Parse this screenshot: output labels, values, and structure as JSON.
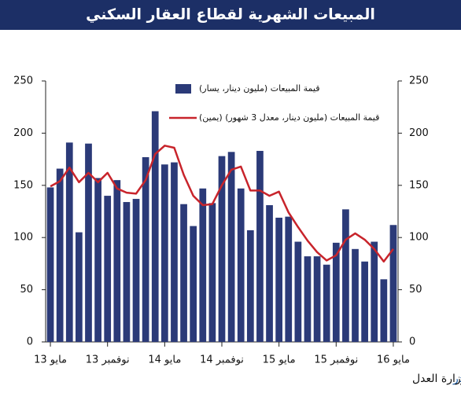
{
  "chart_data": {
    "type": "bar_line",
    "title": "المبيعات الشهرية لقطاع العقار السكني",
    "categories": [
      "مايو 13",
      null,
      null,
      null,
      null,
      null,
      "نوفمبر 13",
      null,
      null,
      null,
      null,
      null,
      "مايو 14",
      null,
      null,
      null,
      null,
      null,
      "نوفمبر 14",
      null,
      null,
      null,
      null,
      null,
      "مايو 15",
      null,
      null,
      null,
      null,
      null,
      "نوفمبر 15",
      null,
      null,
      null,
      null,
      null,
      "مايو 16"
    ],
    "series": [
      {
        "name": "قيمة المبيعات (مليون دينار، يسار)",
        "type": "bar",
        "color": "#2b3a78",
        "values": [
          148,
          166,
          191,
          105,
          190,
          157,
          140,
          155,
          134,
          137,
          177,
          221,
          170,
          172,
          132,
          111,
          147,
          133,
          178,
          182,
          147,
          107,
          183,
          131,
          119,
          120,
          96,
          82,
          82,
          74,
          95,
          127,
          89,
          77,
          96,
          60,
          112
        ]
      },
      {
        "name": "قيمة المبيعات (مليون دينار، معدل 3 شهور) (يمين)",
        "type": "line",
        "axis": "y2",
        "color": "#c8242b",
        "values": [
          149,
          154,
          167,
          153,
          162,
          153,
          162,
          147,
          143,
          142,
          155,
          180,
          188,
          186,
          160,
          140,
          131,
          132,
          150,
          165,
          168,
          145,
          145,
          140,
          144,
          124,
          110,
          97,
          86,
          78,
          83,
          98,
          104,
          98,
          89,
          77,
          89
        ]
      }
    ],
    "ylim": [
      0,
      250
    ],
    "yticks": [
      0,
      50,
      100,
      150,
      200,
      250
    ],
    "y2lim": [
      0,
      250
    ],
    "y2ticks": [
      0,
      50,
      100,
      150,
      200,
      250
    ],
    "source_label": "المصدر",
    "source": ": وزارة العدل"
  }
}
